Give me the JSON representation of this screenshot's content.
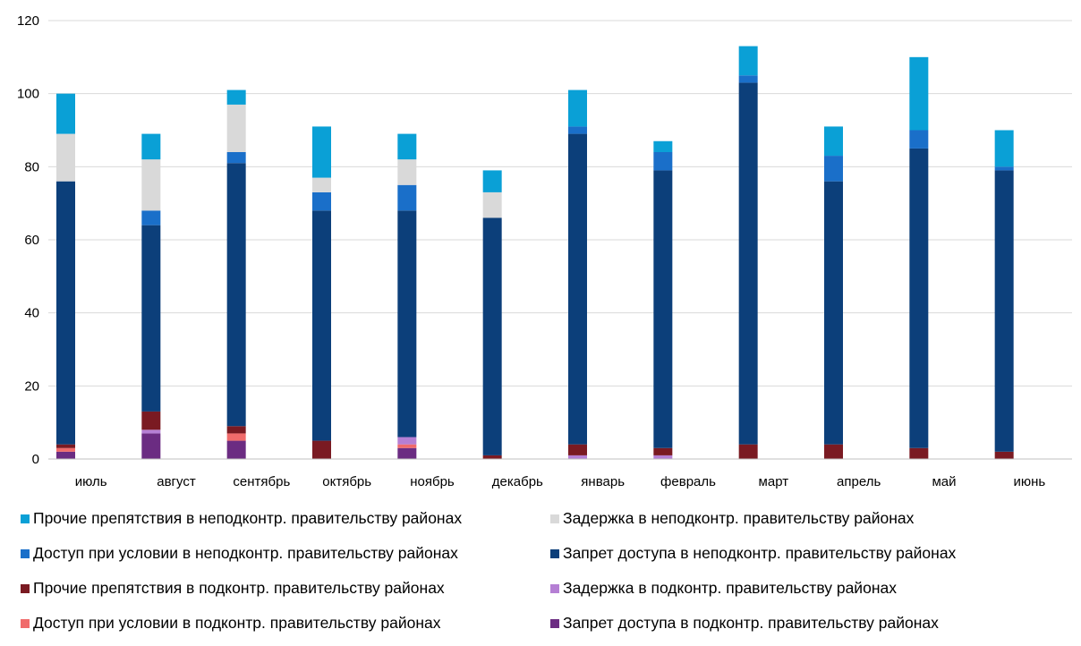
{
  "chart_data": {
    "type": "bar",
    "stacked": true,
    "categories": [
      "июль",
      "август",
      "сентябрь",
      "октябрь",
      "ноябрь",
      "декабрь",
      "январь",
      "февраль",
      "март",
      "апрель",
      "май",
      "июнь"
    ],
    "ylim": [
      0,
      120
    ],
    "yticks": [
      0,
      20,
      40,
      60,
      80,
      100,
      120
    ],
    "grid": true,
    "legend_position": "bottom",
    "series": [
      {
        "name": "Запрет доступа в подконтр. правительству районах",
        "color": "#6b2c82",
        "values": [
          2,
          7,
          5,
          0,
          3,
          0,
          0,
          0,
          0,
          0,
          0,
          0
        ]
      },
      {
        "name": "Доступ при условии в подконтр. правительству районах",
        "color": "#f06b6b",
        "values": [
          1,
          0,
          2,
          0,
          1,
          0,
          0,
          0,
          0,
          0,
          0,
          0
        ]
      },
      {
        "name": "Задержка в подконтр. правительству районах",
        "color": "#b57fd4",
        "values": [
          0,
          1,
          0,
          0,
          2,
          0,
          1,
          1,
          0,
          0,
          0,
          0
        ]
      },
      {
        "name": "Прочие препятствия в подконтр. правительству районах",
        "color": "#7a1a22",
        "values": [
          1,
          5,
          2,
          5,
          0,
          1,
          3,
          2,
          4,
          4,
          3,
          2
        ]
      },
      {
        "name": "Запрет доступа в неподконтр. правительству районах",
        "color": "#0c3f7a",
        "values": [
          72,
          51,
          72,
          63,
          62,
          65,
          85,
          76,
          99,
          72,
          82,
          77
        ]
      },
      {
        "name": "Доступ при условии в неподконтр. правительству районах",
        "color": "#1a6fc9",
        "values": [
          0,
          4,
          3,
          5,
          7,
          0,
          2,
          5,
          2,
          7,
          5,
          1
        ]
      },
      {
        "name": "Задержка в неподконтр. правительству районах",
        "color": "#d9d9d9",
        "values": [
          13,
          14,
          13,
          4,
          7,
          7,
          0,
          0,
          0,
          0,
          0,
          0
        ]
      },
      {
        "name": "Прочие препятствия в неподконтр. правительству районах",
        "color": "#0aa0d6",
        "values": [
          11,
          7,
          4,
          14,
          7,
          6,
          10,
          3,
          8,
          8,
          20,
          10
        ]
      }
    ]
  },
  "legend_rows": [
    [
      7,
      6
    ],
    [
      5,
      4
    ],
    [
      3,
      2
    ],
    [
      1,
      0
    ]
  ]
}
